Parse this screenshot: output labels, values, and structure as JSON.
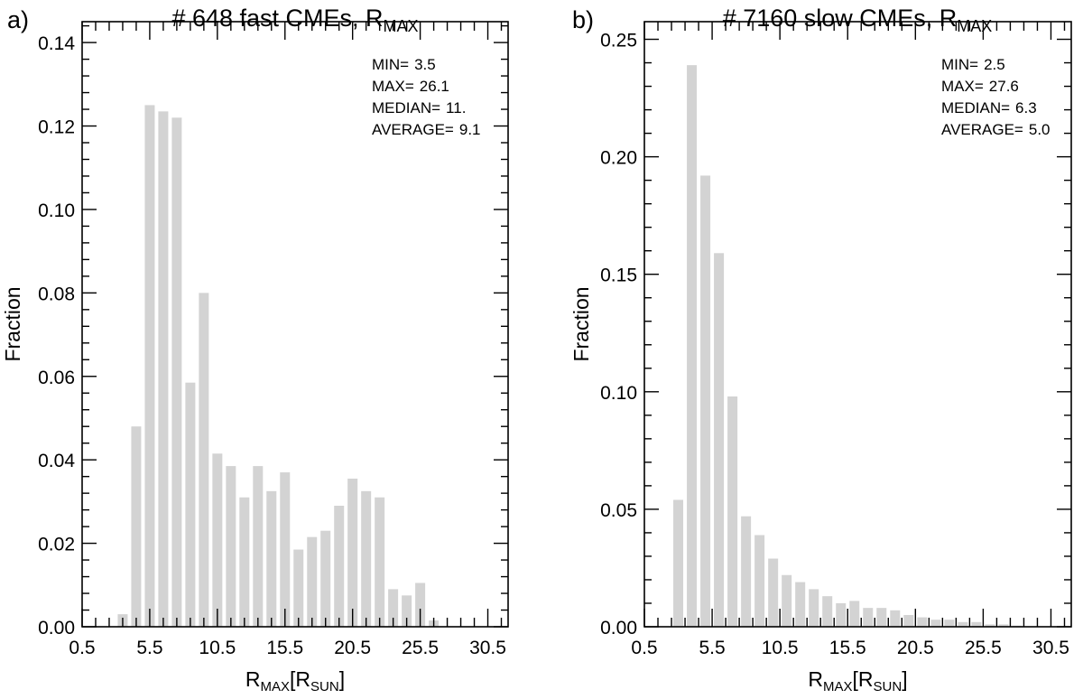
{
  "chart_data": [
    {
      "panel_label": "a)",
      "title": "# 648 fast CMEs, R",
      "title_sub": "MAX",
      "type": "bar",
      "xlabel": "R",
      "xlabel_sub": "MAX",
      "xlabel_bracket_open": "[R",
      "xlabel_bracket_sub": "SUN",
      "xlabel_bracket_close": "]",
      "ylabel": "Fraction",
      "xlim": [
        0.5,
        32.0
      ],
      "ylim": [
        0.0,
        0.145
      ],
      "xticks": [
        0.5,
        5.5,
        10.5,
        15.5,
        20.5,
        25.5,
        30.5
      ],
      "xtick_labels": [
        "0.5",
        "5.5",
        "10.5",
        "15.5",
        "20.5",
        "25.5",
        "30.5"
      ],
      "yticks": [
        0.0,
        0.02,
        0.04,
        0.06,
        0.08,
        0.1,
        0.12,
        0.14
      ],
      "ytick_labels": [
        "0.00",
        "0.02",
        "0.04",
        "0.06",
        "0.08",
        "0.10",
        "0.12",
        "0.14"
      ],
      "x": [
        3.5,
        4.5,
        5.5,
        6.5,
        7.5,
        8.5,
        9.5,
        10.5,
        11.5,
        12.5,
        13.5,
        14.5,
        15.5,
        16.5,
        17.5,
        18.5,
        19.5,
        20.5,
        21.5,
        22.5,
        23.5,
        24.5,
        25.5,
        26.5
      ],
      "values": [
        0.003,
        0.048,
        0.125,
        0.1235,
        0.122,
        0.0585,
        0.08,
        0.0415,
        0.0385,
        0.031,
        0.0385,
        0.0325,
        0.037,
        0.0185,
        0.0215,
        0.023,
        0.029,
        0.0355,
        0.0325,
        0.031,
        0.009,
        0.0075,
        0.0105,
        0.0015
      ],
      "stats": [
        {
          "label": "MIN=",
          "value": "3.5"
        },
        {
          "label": "MAX=",
          "value": "26.1"
        },
        {
          "label": "MEDIAN=",
          "value": "11."
        },
        {
          "label": "AVERAGE=",
          "value": "9.1"
        }
      ]
    },
    {
      "panel_label": "b)",
      "title": "# 7160 slow CMEs, R",
      "title_sub": "MAX",
      "type": "bar",
      "xlabel": "R",
      "xlabel_sub": "MAX",
      "xlabel_bracket_open": "[R",
      "xlabel_bracket_sub": "SUN",
      "xlabel_bracket_close": "]",
      "ylabel": "Fraction",
      "xlim": [
        0.5,
        32.0
      ],
      "ylim": [
        0.0,
        0.2575
      ],
      "xticks": [
        0.5,
        5.5,
        10.5,
        15.5,
        20.5,
        25.5,
        30.5
      ],
      "xtick_labels": [
        "0.5",
        "5.5",
        "10.5",
        "15.5",
        "20.5",
        "25.5",
        "30.5"
      ],
      "yticks": [
        0.0,
        0.05,
        0.1,
        0.15,
        0.2,
        0.25
      ],
      "ytick_labels": [
        "0.00",
        "0.05",
        "0.10",
        "0.15",
        "0.20",
        "0.25"
      ],
      "x": [
        3.0,
        4.0,
        5.0,
        6.0,
        7.0,
        8.0,
        9.0,
        10.0,
        11.0,
        12.0,
        13.0,
        14.0,
        15.0,
        16.0,
        17.0,
        18.0,
        19.0,
        20.0,
        21.0,
        22.0,
        23.0,
        24.0,
        25.0,
        26.0,
        27.0,
        28.0
      ],
      "values": [
        0.054,
        0.239,
        0.192,
        0.159,
        0.098,
        0.047,
        0.039,
        0.029,
        0.022,
        0.019,
        0.016,
        0.013,
        0.01,
        0.011,
        0.008,
        0.008,
        0.007,
        0.005,
        0.004,
        0.003,
        0.003,
        0.002,
        0.002,
        0.001,
        0.001,
        0.0005
      ],
      "stats": [
        {
          "label": "MIN=",
          "value": "2.5"
        },
        {
          "label": "MAX=",
          "value": "27.6"
        },
        {
          "label": "MEDIAN=",
          "value": "6.3"
        },
        {
          "label": "AVERAGE=",
          "value": "5.0"
        }
      ]
    }
  ]
}
